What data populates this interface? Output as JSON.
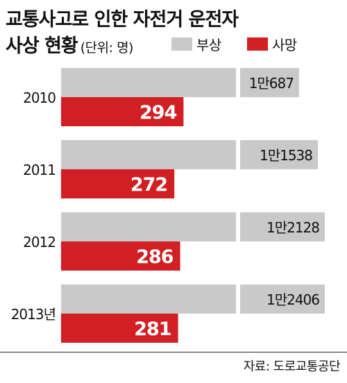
{
  "header": {
    "title_line1": "교통사고로 인한 자전거 운전자",
    "title_line2": "사상 현황",
    "unit": "(단위: 명)"
  },
  "source": "자료: 도로교통공단",
  "colors": {
    "injury": "#c9c9c9",
    "death": "#d11f24",
    "text": "#111111"
  },
  "chart_data": {
    "type": "bar",
    "orientation": "horizontal",
    "categories": [
      "2010",
      "2011",
      "2012",
      "2013년"
    ],
    "series": [
      {
        "name": "부상",
        "values": [
          10687,
          11538,
          12128,
          12406
        ],
        "labels": [
          "1만687",
          "1만1538",
          "1만2128",
          "1만2406"
        ],
        "truncated": true
      },
      {
        "name": "사망",
        "values": [
          294,
          272,
          286,
          281
        ],
        "labels": [
          "294",
          "272",
          "286",
          "281"
        ]
      }
    ],
    "legend_position": "top-right",
    "grid": false
  }
}
